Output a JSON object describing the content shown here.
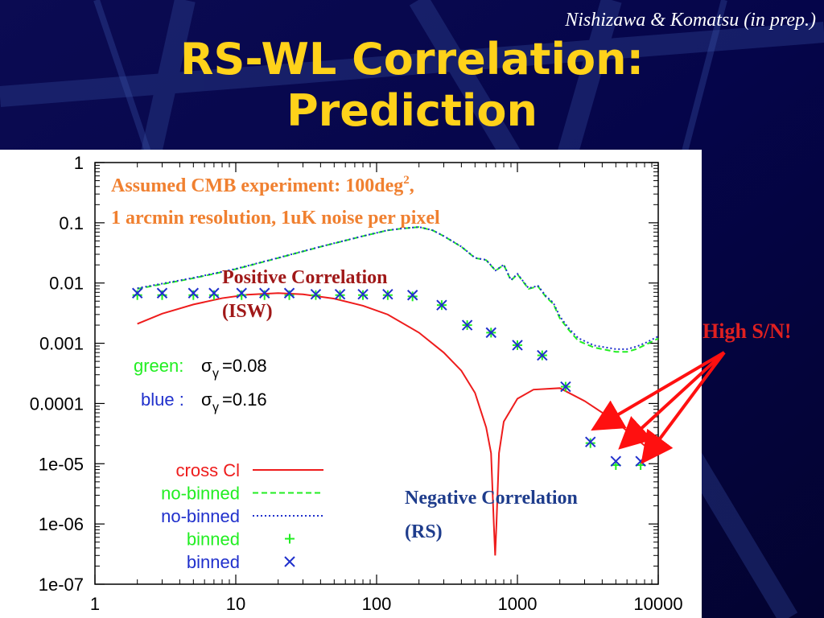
{
  "slide": {
    "credit": "Nishizawa & Komatsu (in prep.)",
    "title_line1": "RS-WL Correlation:",
    "title_line2": "Prediction"
  },
  "annotations": {
    "assumed_line1": "Assumed CMB experiment: 100deg",
    "assumed_sup": "2",
    "assumed_line1_end": ",",
    "assumed_line2": "1 arcmin resolution, 1uK noise per pixel",
    "positive_line1": "Positive Correlation",
    "positive_line2": "(ISW)",
    "negative_line1": "Negative Correlation",
    "negative_line2": "(RS)",
    "high_sn": "High S/N!",
    "green_sigma_prefix": "green:",
    "green_sigma_value": "=0.08",
    "blue_sigma_prefix": "blue :",
    "blue_sigma_value": "=0.16",
    "sigma_symbol": "σ",
    "gamma_symbol": "γ"
  },
  "colors": {
    "title": "#ffd21a",
    "orange_text": "#f08030",
    "dark_red_text": "#a01818",
    "navy_text": "#1e3c8c",
    "cross": "#ee1c1c",
    "green": "#22ee22",
    "blue": "#2030cc",
    "arrow": "#ff1010"
  },
  "chart_data": {
    "type": "line",
    "xscale": "log",
    "yscale": "log",
    "xlim": [
      1,
      10000
    ],
    "ylim": [
      1e-07,
      1
    ],
    "xticks": [
      "1",
      "10",
      "100",
      "1000",
      "10000"
    ],
    "yticks": [
      "1",
      "0.1",
      "0.01",
      "0.001",
      "0.0001",
      "1e-05",
      "1e-06",
      "1e-07"
    ],
    "xtick_values": [
      1,
      10,
      100,
      1000,
      10000
    ],
    "ytick_values": [
      1,
      0.1,
      0.01,
      0.001,
      0.0001,
      1e-05,
      1e-06,
      1e-07
    ],
    "grid": false,
    "legend_position": "bottom-left",
    "series": [
      {
        "name": "cross Cl",
        "style": "solid",
        "color": "#ee1c1c",
        "points": [
          [
            2,
            0.0021
          ],
          [
            3,
            0.0031
          ],
          [
            5,
            0.0044
          ],
          [
            8,
            0.0056
          ],
          [
            12,
            0.0064
          ],
          [
            20,
            0.0068
          ],
          [
            30,
            0.0065
          ],
          [
            50,
            0.0055
          ],
          [
            80,
            0.0042
          ],
          [
            120,
            0.003
          ],
          [
            200,
            0.0015
          ],
          [
            300,
            0.0007
          ],
          [
            400,
            0.00035
          ],
          [
            500,
            0.00015
          ],
          [
            600,
            4e-05
          ],
          [
            650,
            1.5e-05
          ],
          [
            680,
            1e-06
          ],
          [
            695,
            3e-07
          ],
          [
            710,
            1e-06
          ],
          [
            740,
            1.5e-05
          ],
          [
            800,
            5e-05
          ],
          [
            1000,
            0.00012
          ],
          [
            1300,
            0.00017
          ],
          [
            2000,
            0.00018
          ],
          [
            3000,
            0.00011
          ],
          [
            5000,
            5e-05
          ],
          [
            8000,
            2e-05
          ]
        ]
      },
      {
        "name": "no-binned",
        "style": "dashed",
        "color": "#22ee22",
        "points": [
          [
            2,
            0.008
          ],
          [
            5,
            0.012
          ],
          [
            10,
            0.017
          ],
          [
            20,
            0.026
          ],
          [
            40,
            0.04
          ],
          [
            80,
            0.06
          ],
          [
            120,
            0.075
          ],
          [
            150,
            0.08
          ],
          [
            200,
            0.085
          ],
          [
            250,
            0.075
          ],
          [
            300,
            0.06
          ],
          [
            400,
            0.04
          ],
          [
            500,
            0.026
          ],
          [
            600,
            0.024
          ],
          [
            700,
            0.016
          ],
          [
            800,
            0.02
          ],
          [
            900,
            0.011
          ],
          [
            1000,
            0.014
          ],
          [
            1200,
            0.008
          ],
          [
            1400,
            0.0088
          ],
          [
            1600,
            0.0058
          ],
          [
            1800,
            0.0045
          ],
          [
            2000,
            0.0026
          ],
          [
            2300,
            0.0017
          ],
          [
            2700,
            0.0011
          ],
          [
            3500,
            0.00085
          ],
          [
            5000,
            0.00072
          ],
          [
            6000,
            0.00072
          ],
          [
            7000,
            0.0008
          ],
          [
            8000,
            0.00093
          ],
          [
            10000,
            0.0012
          ]
        ]
      },
      {
        "name": "no-binned",
        "style": "dotted",
        "color": "#2030cc",
        "points": [
          [
            2,
            0.0082
          ],
          [
            5,
            0.0122
          ],
          [
            10,
            0.0172
          ],
          [
            20,
            0.0262
          ],
          [
            40,
            0.0402
          ],
          [
            80,
            0.0602
          ],
          [
            120,
            0.0752
          ],
          [
            150,
            0.0802
          ],
          [
            200,
            0.0852
          ],
          [
            250,
            0.0752
          ],
          [
            300,
            0.0602
          ],
          [
            400,
            0.0402
          ],
          [
            500,
            0.0262
          ],
          [
            600,
            0.0242
          ],
          [
            700,
            0.0162
          ],
          [
            800,
            0.0202
          ],
          [
            900,
            0.0112
          ],
          [
            1000,
            0.0142
          ],
          [
            1200,
            0.0082
          ],
          [
            1400,
            0.009
          ],
          [
            1600,
            0.006
          ],
          [
            1800,
            0.0047
          ],
          [
            2000,
            0.0028
          ],
          [
            2300,
            0.0018
          ],
          [
            2700,
            0.00122
          ],
          [
            3500,
            0.00092
          ],
          [
            5000,
            0.0008
          ],
          [
            6000,
            0.0008
          ],
          [
            7000,
            0.00088
          ],
          [
            8000,
            0.001
          ],
          [
            10000,
            0.0013
          ]
        ]
      },
      {
        "name": "binned",
        "style": "plus",
        "color": "#22ee22",
        "points": [
          [
            2,
            0.0063
          ],
          [
            3,
            0.0063
          ],
          [
            5,
            0.0063
          ],
          [
            7,
            0.0063
          ],
          [
            11,
            0.0063
          ],
          [
            16,
            0.0063
          ],
          [
            24,
            0.0063
          ],
          [
            37,
            0.0063
          ],
          [
            55,
            0.0063
          ],
          [
            80,
            0.0063
          ],
          [
            120,
            0.0063
          ],
          [
            180,
            0.006
          ],
          [
            290,
            0.0043
          ],
          [
            440,
            0.002
          ],
          [
            650,
            0.0015
          ],
          [
            1000,
            0.00093
          ],
          [
            1500,
            0.00063
          ],
          [
            2200,
            0.00019
          ],
          [
            3300,
            2.2e-05
          ],
          [
            5000,
            9.5e-06
          ],
          [
            7500,
            9.5e-06
          ]
        ]
      },
      {
        "name": "binned",
        "style": "cross",
        "color": "#2030cc",
        "points": [
          [
            2,
            0.0068
          ],
          [
            3,
            0.0068
          ],
          [
            5,
            0.0068
          ],
          [
            7,
            0.0068
          ],
          [
            11,
            0.0068
          ],
          [
            16,
            0.0068
          ],
          [
            24,
            0.0068
          ],
          [
            37,
            0.0065
          ],
          [
            55,
            0.0065
          ],
          [
            80,
            0.0065
          ],
          [
            120,
            0.0065
          ],
          [
            180,
            0.0063
          ],
          [
            290,
            0.0043
          ],
          [
            440,
            0.002
          ],
          [
            650,
            0.0015
          ],
          [
            1000,
            0.00093
          ],
          [
            1500,
            0.00063
          ],
          [
            2200,
            0.00019
          ],
          [
            3300,
            2.3e-05
          ],
          [
            5000,
            1.1e-05
          ],
          [
            7500,
            1.1e-05
          ]
        ]
      }
    ],
    "legend": [
      {
        "label": "cross Cl",
        "style": "solid",
        "color": "#ee1c1c",
        "text_color": "#ee1c1c"
      },
      {
        "label": "no-binned",
        "style": "dashed",
        "color": "#22ee22",
        "text_color": "#22ee22"
      },
      {
        "label": "no-binned",
        "style": "dotted",
        "color": "#2030cc",
        "text_color": "#2030cc"
      },
      {
        "label": "binned",
        "style": "plus",
        "color": "#22ee22",
        "text_color": "#22ee22"
      },
      {
        "label": "binned",
        "style": "cross",
        "color": "#2030cc",
        "text_color": "#2030cc"
      }
    ]
  }
}
